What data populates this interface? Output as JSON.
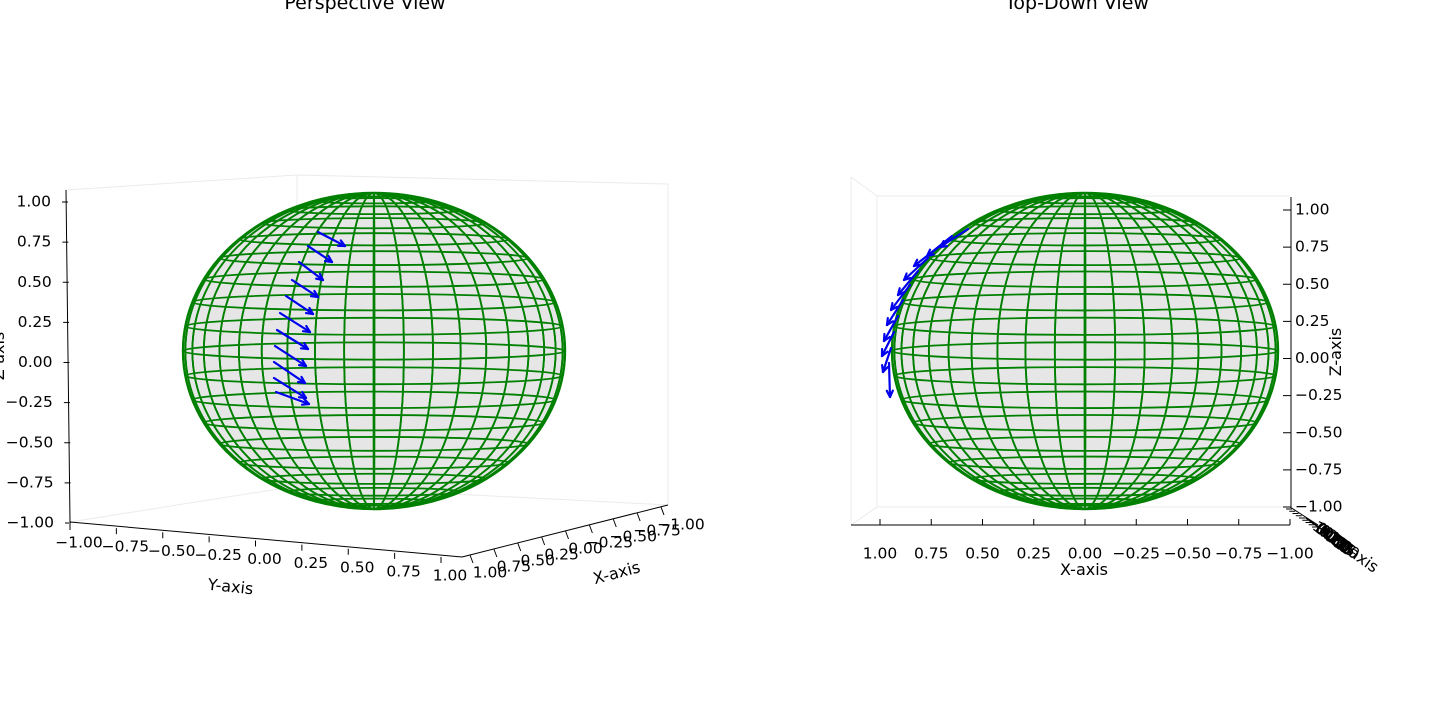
{
  "chart_data": [
    {
      "type": "3d-wireframe-sphere",
      "title": "Perspective View",
      "xlabel": "X-axis",
      "ylabel": "Y-axis",
      "zlabel": "Z-axis",
      "xlim": [
        -1,
        1
      ],
      "ylim": [
        -1,
        1
      ],
      "zlim": [
        -1,
        1
      ],
      "x_ticks": [
        "−1.00",
        "−0.75",
        "−0.50",
        "−0.25",
        "0.00",
        "0.25",
        "0.50",
        "0.75",
        "1.00"
      ],
      "y_ticks": [
        "−1.00",
        "−0.75",
        "−0.50",
        "−0.25",
        "0.00",
        "0.25",
        "0.50",
        "0.75",
        "1.00"
      ],
      "z_ticks": [
        "−1.00",
        "−0.75",
        "−0.50",
        "−0.25",
        "0.00",
        "0.25",
        "0.50",
        "0.75",
        "1.00"
      ],
      "surface_color": "#e6e6e6",
      "wireframe_color": "#008000",
      "vector_color": "#0000ff",
      "vectors": {
        "count": 11,
        "description": "tangent arrows along a meridian on the sphere"
      }
    },
    {
      "type": "3d-wireframe-sphere",
      "title": "Top-Down View",
      "xlabel": "X-axis",
      "ylabel": "Y-axis",
      "zlabel": "Z-axis",
      "xlim": [
        -1,
        1
      ],
      "ylim": [
        -1,
        1
      ],
      "zlim": [
        -1,
        1
      ],
      "x_ticks": [
        "1.00",
        "0.75",
        "0.50",
        "0.25",
        "0.00",
        "−0.25",
        "−0.50",
        "−0.75",
        "−1.00"
      ],
      "z_ticks": [
        "1.00",
        "0.75",
        "0.50",
        "0.25",
        "0.00",
        "−0.25",
        "−0.50",
        "−0.75",
        "−1.00"
      ],
      "y_ticks": [
        "−1.00",
        "−0.75",
        "−0.50",
        "−0.25",
        "0.00",
        "0.25",
        "0.50",
        "0.75",
        "1.00"
      ],
      "surface_color": "#e6e6e6",
      "wireframe_color": "#008000",
      "vector_color": "#0000ff",
      "vectors": {
        "count": 11,
        "description": "tangent arrows along the left limb"
      }
    }
  ]
}
